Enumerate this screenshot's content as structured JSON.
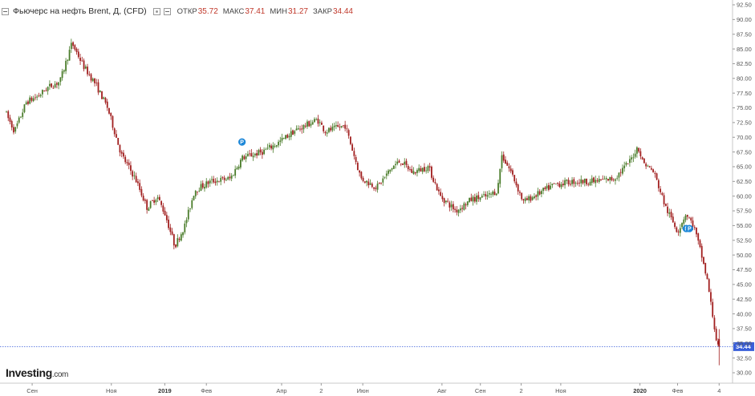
{
  "header": {
    "title": "Фьючерс на нефть Brent, Д, (CFD)",
    "open_label": "ОТКР",
    "open_value": "35.72",
    "high_label": "МАКС",
    "high_value": "37.41",
    "low_label": "МИН",
    "low_value": "31.27",
    "close_label": "ЗАКР",
    "close_value": "34.44"
  },
  "logo": {
    "brand": "Investing",
    "domain": ".com"
  },
  "current_price_label": "34.44",
  "markers": [
    {
      "text": "P",
      "price": 69.2,
      "month_pos": 5.95
    },
    {
      "text": "Г",
      "price": 54.5,
      "month_pos": 17.17
    },
    {
      "text": "P",
      "price": 54.5,
      "month_pos": 17.25
    }
  ],
  "colors": {
    "up": "#4a7c2a",
    "down": "#a11f1f",
    "price_line": "#3a5fd9",
    "marker": "#1e88d8",
    "axis": "#c9c9c9"
  },
  "chart_data": {
    "type": "candlestick",
    "title": "Фьючерс на нефть Brent, Д, (CFD)",
    "ylim": [
      29.5,
      93
    ],
    "y_ticks": [
      "30.00",
      "32.50",
      "35.00",
      "37.50",
      "40.00",
      "42.50",
      "45.00",
      "47.50",
      "50.00",
      "52.50",
      "55.00",
      "57.50",
      "60.00",
      "62.50",
      "65.00",
      "67.50",
      "70.00",
      "72.50",
      "75.00",
      "77.50",
      "80.00",
      "82.50",
      "85.00",
      "87.50",
      "90.00",
      "92.50"
    ],
    "x_ticks": [
      {
        "label": "Сен",
        "pos": 0.65,
        "bold": false
      },
      {
        "label": "Ноя",
        "pos": 2.65,
        "bold": false
      },
      {
        "label": "2019",
        "pos": 4.0,
        "bold": true
      },
      {
        "label": "Фев",
        "pos": 5.05,
        "bold": false
      },
      {
        "label": "Апр",
        "pos": 6.95,
        "bold": false
      },
      {
        "label": "2",
        "pos": 7.95,
        "bold": false
      },
      {
        "label": "Июн",
        "pos": 9.0,
        "bold": false
      },
      {
        "label": "Авг",
        "pos": 11.0,
        "bold": false
      },
      {
        "label": "Сен",
        "pos": 11.97,
        "bold": false
      },
      {
        "label": "2",
        "pos": 13.0,
        "bold": false
      },
      {
        "label": "Ноя",
        "pos": 14.0,
        "bold": false
      },
      {
        "label": "2020",
        "pos": 16.0,
        "bold": true
      },
      {
        "label": "Фев",
        "pos": 16.95,
        "bold": false
      },
      {
        "label": "4",
        "pos": 18.0,
        "bold": false
      }
    ],
    "anchors": [
      [
        0.0,
        74.5
      ],
      [
        0.25,
        71.0
      ],
      [
        0.55,
        76.0
      ],
      [
        0.85,
        77.0
      ],
      [
        1.1,
        78.5
      ],
      [
        1.4,
        79.5
      ],
      [
        1.7,
        86.0
      ],
      [
        2.0,
        82.0
      ],
      [
        2.3,
        79.0
      ],
      [
        2.6,
        75.0
      ],
      [
        2.95,
        67.0
      ],
      [
        3.3,
        63.0
      ],
      [
        3.6,
        58.0
      ],
      [
        3.85,
        60.0
      ],
      [
        4.05,
        57.0
      ],
      [
        4.3,
        51.5
      ],
      [
        4.55,
        55.0
      ],
      [
        4.8,
        61.0
      ],
      [
        5.2,
        62.5
      ],
      [
        5.7,
        63.0
      ],
      [
        6.0,
        66.5
      ],
      [
        6.5,
        67.5
      ],
      [
        6.9,
        69.0
      ],
      [
        7.3,
        71.0
      ],
      [
        7.9,
        73.0
      ],
      [
        8.1,
        71.0
      ],
      [
        8.6,
        72.0
      ],
      [
        9.0,
        63.0
      ],
      [
        9.4,
        61.5
      ],
      [
        9.8,
        65.0
      ],
      [
        10.0,
        66.0
      ],
      [
        10.3,
        64.0
      ],
      [
        10.7,
        65.0
      ],
      [
        11.0,
        60.0
      ],
      [
        11.4,
        57.5
      ],
      [
        11.8,
        59.5
      ],
      [
        12.2,
        60.0
      ],
      [
        12.45,
        61.0
      ],
      [
        12.55,
        67.0
      ],
      [
        12.8,
        64.0
      ],
      [
        13.1,
        59.0
      ],
      [
        13.5,
        60.5
      ],
      [
        13.9,
        62.0
      ],
      [
        14.4,
        62.5
      ],
      [
        14.9,
        62.5
      ],
      [
        15.4,
        63.0
      ],
      [
        15.8,
        66.0
      ],
      [
        16.0,
        68.5
      ],
      [
        16.1,
        66.0
      ],
      [
        16.4,
        64.0
      ],
      [
        16.7,
        58.0
      ],
      [
        17.0,
        54.0
      ],
      [
        17.2,
        57.0
      ],
      [
        17.4,
        55.0
      ],
      [
        17.6,
        50.0
      ],
      [
        17.75,
        45.5
      ],
      [
        18.0,
        34.44
      ]
    ],
    "last_candle": {
      "open": 35.72,
      "high": 37.41,
      "low": 31.27,
      "close": 34.44
    }
  }
}
